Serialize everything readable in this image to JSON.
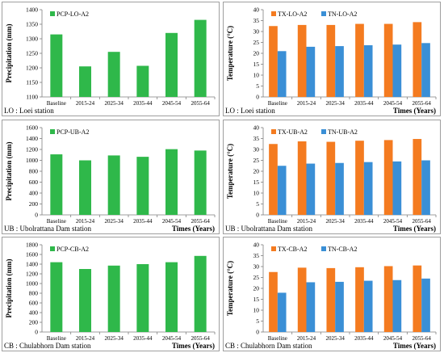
{
  "chart_data": [
    {
      "type": "bar",
      "categories": [
        "Baseline",
        "2015-24",
        "2025-34",
        "2035-44",
        "2045-54",
        "2055-64"
      ],
      "series": [
        {
          "name": "PCP-LO-A2",
          "values": [
            1315,
            1205,
            1255,
            1207,
            1320,
            1365
          ],
          "color": "#2fb84a"
        }
      ],
      "ylabel": "Precipitation (mm)",
      "xlabel": "",
      "ylim": [
        1100,
        1400
      ],
      "yticks": [
        1100,
        1150,
        1200,
        1250,
        1300,
        1350,
        1400
      ],
      "station_label": "LO : Loei station",
      "grid": false,
      "legend": "top-left"
    },
    {
      "type": "bar",
      "categories": [
        "Baseline",
        "2015-24",
        "2025-34",
        "2035-44",
        "2045-54",
        "2055-64"
      ],
      "series": [
        {
          "name": "TX-LO-A2",
          "values": [
            32.5,
            33,
            33,
            33.5,
            33.5,
            34.3
          ],
          "color": "#f47b20"
        },
        {
          "name": "TN-LO-A2",
          "values": [
            21,
            23,
            23.3,
            23.7,
            24,
            24.7
          ],
          "color": "#3a8fd6"
        }
      ],
      "ylabel": "Temperature (°C)",
      "xlabel": "Times (Years)",
      "ylim": [
        0,
        40
      ],
      "yticks": [
        0,
        5,
        10,
        15,
        20,
        25,
        30,
        35,
        40
      ],
      "station_label": "LO : Loei station",
      "grid": false,
      "legend": "top-left"
    },
    {
      "type": "bar",
      "categories": [
        "Baseline",
        "2015-24",
        "2025-34",
        "2035-44",
        "2045-54",
        "2055-64"
      ],
      "series": [
        {
          "name": "PCP-UB-A2",
          "values": [
            1110,
            1000,
            1090,
            1065,
            1205,
            1180
          ],
          "color": "#2fb84a"
        }
      ],
      "ylabel": "Precipitation (mm)",
      "xlabel": "Times (Years)",
      "ylim": [
        0,
        1600
      ],
      "yticks": [
        0,
        200,
        400,
        600,
        800,
        1000,
        1200,
        1400,
        1600
      ],
      "station_label": "UB : Ubolrattana Dam station",
      "grid": false,
      "legend": "top-left"
    },
    {
      "type": "bar",
      "categories": [
        "Baseline",
        "2015-24",
        "2025-34",
        "2035-44",
        "2045-54",
        "2055-64"
      ],
      "series": [
        {
          "name": "TX-UB-A2",
          "values": [
            32.5,
            33.7,
            33.5,
            34,
            34.3,
            34.8
          ],
          "color": "#f47b20"
        },
        {
          "name": "TN-UB-A2",
          "values": [
            22.5,
            23.5,
            23.8,
            24.2,
            24.5,
            25
          ],
          "color": "#3a8fd6"
        }
      ],
      "ylabel": "Temperature (°C)",
      "xlabel": "Times (Years)",
      "ylim": [
        0,
        40
      ],
      "yticks": [
        0,
        5,
        10,
        15,
        20,
        25,
        30,
        35,
        40
      ],
      "station_label": "UB : Ubolrattana Dam station",
      "grid": false,
      "legend": "top-left"
    },
    {
      "type": "bar",
      "categories": [
        "Baseline",
        "2015-24",
        "2025-34",
        "2035-44",
        "2045-54",
        "2055-64"
      ],
      "series": [
        {
          "name": "PCP-CB-A2",
          "values": [
            1440,
            1300,
            1370,
            1400,
            1440,
            1570
          ],
          "color": "#2fb84a"
        }
      ],
      "ylabel": "Precipitation (mm)",
      "xlabel": "Times (Years)",
      "ylim": [
        0,
        1800
      ],
      "yticks": [
        0,
        200,
        400,
        600,
        800,
        1000,
        1200,
        1400,
        1600,
        1800
      ],
      "station_label": "CB : Chulabhorn Dam station",
      "grid": false,
      "legend": "top-left"
    },
    {
      "type": "bar",
      "categories": [
        "Baseline",
        "2015-24",
        "2025-34",
        "2035-44",
        "2045-54",
        "2055-64"
      ],
      "series": [
        {
          "name": "TX-CB-A2",
          "values": [
            27.5,
            29.5,
            29.3,
            29.7,
            30.2,
            30.5
          ],
          "color": "#f47b20"
        },
        {
          "name": "TN-CB-A2",
          "values": [
            18,
            22.8,
            23,
            23.5,
            23.8,
            24.5
          ],
          "color": "#3a8fd6"
        }
      ],
      "ylabel": "Temperature (°C)",
      "xlabel": "Times (Years)",
      "ylim": [
        0,
        40
      ],
      "yticks": [
        0,
        5,
        10,
        15,
        20,
        25,
        30,
        35,
        40
      ],
      "station_label": "CB : Chulabhorn Dam station",
      "grid": false,
      "legend": "top-left"
    }
  ]
}
